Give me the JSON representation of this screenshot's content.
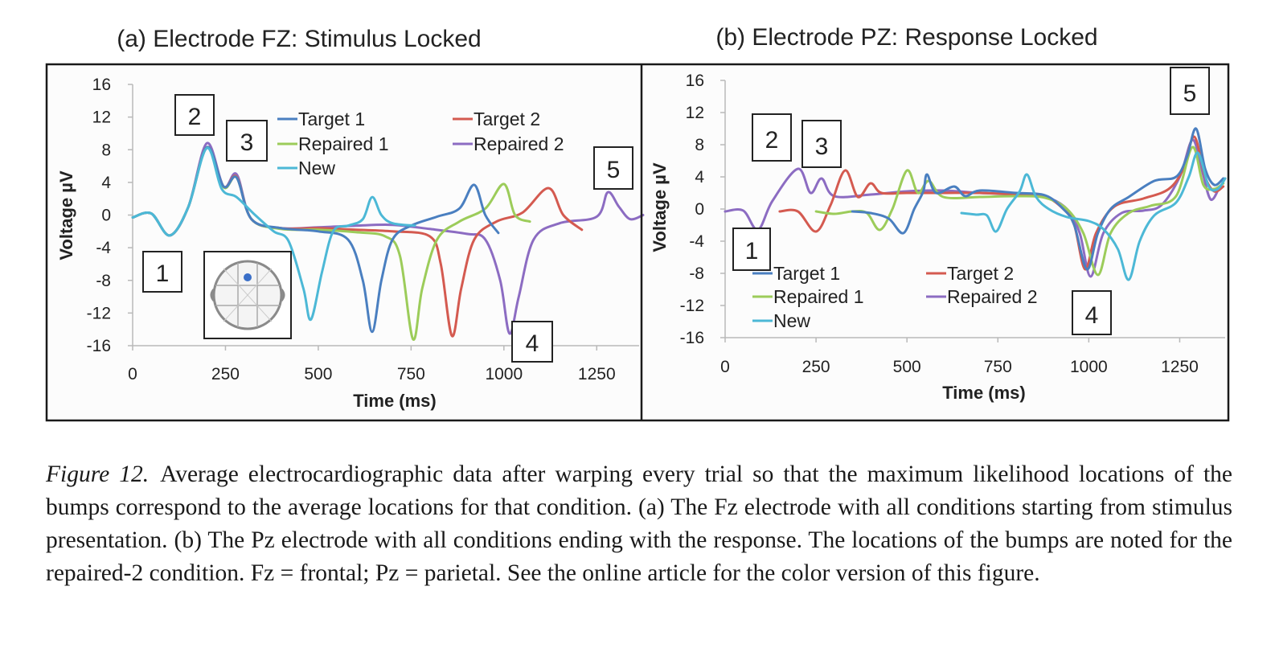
{
  "figure": {
    "caption_label": "Figure 12.",
    "caption_text": "Average electrocardiographic data after warping every trial so that the maximum likelihood locations of the bumps correspond to the average locations for that condition. (a) The Fz electrode with all conditions starting from stimulus presentation. (b) The Pz electrode with all conditions ending with the response. The locations of the bumps are noted for the repaired-2 condition. Fz = frontal; Pz = parietal. See the online article for the color version of this figure."
  },
  "colors": {
    "Target 1": "#4a7fc0",
    "Target 2": "#d45a50",
    "Repaired 1": "#9ccc5a",
    "Repaired 2": "#8c6cc2",
    "New": "#4cb8d6"
  },
  "chart_data": [
    {
      "type": "line",
      "title": "(a) Electrode FZ: Stimulus Locked",
      "xlabel": "Time (ms)",
      "ylabel": "Voltage µV",
      "xlim": [
        0,
        1375
      ],
      "ylim": [
        -16,
        16
      ],
      "xticks": [
        "0",
        "250",
        "500",
        "750",
        "1000",
        "1250"
      ],
      "yticks": [
        "16",
        "12",
        "8",
        "4",
        "0",
        "-4",
        "-8",
        "-12",
        "-16"
      ],
      "legend": {
        "placement": "top",
        "entries": [
          "Target 1",
          "Target 2",
          "Repaired 1",
          "Repaired 2",
          "New"
        ]
      },
      "bump_labels": [
        "1",
        "2",
        "3",
        "4",
        "5"
      ],
      "series": [
        {
          "name": "Repaired 2",
          "points": [
            [
              0,
              -0.3
            ],
            [
              50,
              0.2
            ],
            [
              100,
              -2.5
            ],
            [
              150,
              1
            ],
            [
              200,
              8.8
            ],
            [
              245,
              3.5
            ],
            [
              280,
              5
            ],
            [
              320,
              -0.5
            ],
            [
              400,
              -1.6
            ],
            [
              500,
              -1.5
            ],
            [
              600,
              -1.3
            ],
            [
              700,
              -1.2
            ],
            [
              800,
              -1.7
            ],
            [
              900,
              -2.3
            ],
            [
              950,
              -3
            ],
            [
              990,
              -8
            ],
            [
              1015,
              -14.5
            ],
            [
              1040,
              -10
            ],
            [
              1080,
              -3
            ],
            [
              1150,
              -1
            ],
            [
              1250,
              -0.2
            ],
            [
              1280,
              2.8
            ],
            [
              1310,
              1
            ],
            [
              1340,
              -0.5
            ],
            [
              1375,
              0
            ]
          ]
        },
        {
          "name": "Target 2",
          "points": [
            [
              0,
              -0.3
            ],
            [
              50,
              0.2
            ],
            [
              100,
              -2.5
            ],
            [
              150,
              1
            ],
            [
              200,
              8.3
            ],
            [
              245,
              3.5
            ],
            [
              280,
              4.7
            ],
            [
              320,
              -0.5
            ],
            [
              400,
              -1.6
            ],
            [
              500,
              -1.6
            ],
            [
              600,
              -1.8
            ],
            [
              700,
              -2
            ],
            [
              800,
              -2.6
            ],
            [
              830,
              -6
            ],
            [
              860,
              -14.8
            ],
            [
              885,
              -9
            ],
            [
              920,
              -3
            ],
            [
              980,
              -0.8
            ],
            [
              1050,
              0.3
            ],
            [
              1120,
              3.3
            ],
            [
              1160,
              0
            ],
            [
              1210,
              -1.8
            ]
          ]
        },
        {
          "name": "Repaired 1",
          "points": [
            [
              0,
              -0.3
            ],
            [
              50,
              0.2
            ],
            [
              100,
              -2.5
            ],
            [
              150,
              1
            ],
            [
              200,
              8.3
            ],
            [
              245,
              3.4
            ],
            [
              280,
              4.6
            ],
            [
              320,
              -0.5
            ],
            [
              400,
              -1.7
            ],
            [
              500,
              -1.8
            ],
            [
              600,
              -2.1
            ],
            [
              680,
              -2.6
            ],
            [
              720,
              -5
            ],
            [
              755,
              -15.2
            ],
            [
              780,
              -9
            ],
            [
              820,
              -3
            ],
            [
              880,
              -0.8
            ],
            [
              950,
              0.8
            ],
            [
              1000,
              3.8
            ],
            [
              1030,
              0
            ],
            [
              1070,
              -0.8
            ]
          ]
        },
        {
          "name": "Target 1",
          "points": [
            [
              0,
              -0.3
            ],
            [
              50,
              0.2
            ],
            [
              100,
              -2.5
            ],
            [
              150,
              1
            ],
            [
              200,
              8.3
            ],
            [
              245,
              3.5
            ],
            [
              280,
              4.6
            ],
            [
              320,
              -0.5
            ],
            [
              400,
              -1.6
            ],
            [
              500,
              -2
            ],
            [
              580,
              -3
            ],
            [
              620,
              -8
            ],
            [
              645,
              -14.3
            ],
            [
              670,
              -8
            ],
            [
              700,
              -3
            ],
            [
              750,
              -1.3
            ],
            [
              820,
              -0.2
            ],
            [
              880,
              0.8
            ],
            [
              920,
              3.7
            ],
            [
              950,
              0
            ],
            [
              985,
              -2.2
            ]
          ]
        },
        {
          "name": "New",
          "points": [
            [
              0,
              -0.3
            ],
            [
              50,
              0.2
            ],
            [
              100,
              -2.5
            ],
            [
              150,
              1
            ],
            [
              200,
              8.2
            ],
            [
              240,
              3.2
            ],
            [
              280,
              2.2
            ],
            [
              330,
              0
            ],
            [
              380,
              -2
            ],
            [
              420,
              -3.2
            ],
            [
              460,
              -9
            ],
            [
              480,
              -12.8
            ],
            [
              510,
              -7
            ],
            [
              540,
              -2
            ],
            [
              580,
              -1.3
            ],
            [
              620,
              -0.5
            ],
            [
              645,
              2.2
            ],
            [
              670,
              0
            ],
            [
              700,
              -1
            ],
            [
              760,
              -1.3
            ]
          ]
        }
      ]
    },
    {
      "type": "line",
      "title": "(b) Electrode PZ: Response Locked",
      "xlabel": "Time (ms)",
      "ylabel": "Voltage µV",
      "xlim": [
        0,
        1375
      ],
      "ylim": [
        -16,
        16
      ],
      "xticks": [
        "0",
        "250",
        "500",
        "750",
        "1000",
        "1250"
      ],
      "yticks": [
        "16",
        "12",
        "8",
        "4",
        "0",
        "-4",
        "-8",
        "-12",
        "-16"
      ],
      "legend": {
        "placement": "bottom-left",
        "entries": [
          "Target 1",
          "Target 2",
          "Repaired 1",
          "Repaired 2",
          "New"
        ]
      },
      "bump_labels": [
        "1",
        "2",
        "3",
        "4",
        "5"
      ],
      "series": [
        {
          "name": "Repaired 2",
          "points": [
            [
              0,
              -0.3
            ],
            [
              50,
              -0.2
            ],
            [
              90,
              -2.6
            ],
            [
              130,
              1
            ],
            [
              200,
              5
            ],
            [
              235,
              2
            ],
            [
              265,
              3.8
            ],
            [
              300,
              1.6
            ],
            [
              400,
              1.8
            ],
            [
              500,
              2.2
            ],
            [
              600,
              2.3
            ],
            [
              700,
              2
            ],
            [
              800,
              1.8
            ],
            [
              880,
              1.5
            ],
            [
              940,
              0
            ],
            [
              975,
              -3
            ],
            [
              1005,
              -8.4
            ],
            [
              1040,
              -3
            ],
            [
              1090,
              -0.5
            ],
            [
              1150,
              -0.2
            ],
            [
              1200,
              0.5
            ],
            [
              1250,
              4
            ],
            [
              1285,
              8.6
            ],
            [
              1310,
              5
            ],
            [
              1335,
              1.2
            ],
            [
              1360,
              2.8
            ]
          ]
        },
        {
          "name": "Target 2",
          "points": [
            [
              150,
              -0.3
            ],
            [
              200,
              -0.3
            ],
            [
              250,
              -2.8
            ],
            [
              290,
              0.5
            ],
            [
              330,
              4.8
            ],
            [
              365,
              1.5
            ],
            [
              400,
              3.2
            ],
            [
              430,
              2
            ],
            [
              500,
              2
            ],
            [
              600,
              2
            ],
            [
              700,
              2
            ],
            [
              800,
              1.8
            ],
            [
              880,
              1.5
            ],
            [
              930,
              0
            ],
            [
              960,
              -2
            ],
            [
              990,
              -7.5
            ],
            [
              1020,
              -3
            ],
            [
              1070,
              0.3
            ],
            [
              1150,
              1.3
            ],
            [
              1220,
              2.5
            ],
            [
              1260,
              5
            ],
            [
              1290,
              9
            ],
            [
              1320,
              4
            ],
            [
              1345,
              2.2
            ],
            [
              1370,
              2.8
            ]
          ]
        },
        {
          "name": "Repaired 1",
          "points": [
            [
              250,
              -0.3
            ],
            [
              300,
              -0.6
            ],
            [
              350,
              -0.3
            ],
            [
              390,
              -0.5
            ],
            [
              425,
              -2.6
            ],
            [
              460,
              0
            ],
            [
              500,
              4.8
            ],
            [
              530,
              2
            ],
            [
              560,
              3.5
            ],
            [
              600,
              1.5
            ],
            [
              700,
              1.5
            ],
            [
              800,
              1.6
            ],
            [
              880,
              1.4
            ],
            [
              940,
              0
            ],
            [
              985,
              -3
            ],
            [
              1025,
              -8.2
            ],
            [
              1060,
              -3
            ],
            [
              1110,
              -0.5
            ],
            [
              1170,
              0.4
            ],
            [
              1240,
              1.6
            ],
            [
              1285,
              7.7
            ],
            [
              1315,
              3
            ],
            [
              1345,
              2.5
            ],
            [
              1370,
              3.2
            ]
          ]
        },
        {
          "name": "Target 1",
          "points": [
            [
              350,
              -0.3
            ],
            [
              400,
              -0.5
            ],
            [
              450,
              -1.2
            ],
            [
              490,
              -3
            ],
            [
              520,
              0
            ],
            [
              545,
              2.2
            ],
            [
              555,
              4.3
            ],
            [
              580,
              2
            ],
            [
              630,
              2.8
            ],
            [
              660,
              1.6
            ],
            [
              700,
              2.3
            ],
            [
              800,
              2
            ],
            [
              880,
              1.7
            ],
            [
              930,
              0
            ],
            [
              960,
              -2
            ],
            [
              995,
              -7.5
            ],
            [
              1025,
              -3
            ],
            [
              1060,
              0
            ],
            [
              1110,
              1.5
            ],
            [
              1180,
              3.5
            ],
            [
              1240,
              4
            ],
            [
              1270,
              6.5
            ],
            [
              1295,
              10
            ],
            [
              1320,
              5
            ],
            [
              1345,
              3
            ],
            [
              1370,
              3.8
            ]
          ]
        },
        {
          "name": "New",
          "points": [
            [
              650,
              -0.5
            ],
            [
              690,
              -0.7
            ],
            [
              720,
              -0.8
            ],
            [
              745,
              -2.8
            ],
            [
              775,
              0
            ],
            [
              810,
              2.2
            ],
            [
              830,
              4.3
            ],
            [
              855,
              1.5
            ],
            [
              890,
              0
            ],
            [
              940,
              -1
            ],
            [
              1000,
              -1.5
            ],
            [
              1040,
              -2.5
            ],
            [
              1080,
              -5
            ],
            [
              1110,
              -8.8
            ],
            [
              1140,
              -4
            ],
            [
              1180,
              -0.8
            ],
            [
              1240,
              0.8
            ],
            [
              1275,
              4
            ],
            [
              1300,
              7
            ],
            [
              1330,
              2.8
            ],
            [
              1355,
              2.5
            ],
            [
              1375,
              3.8
            ]
          ]
        }
      ]
    }
  ]
}
